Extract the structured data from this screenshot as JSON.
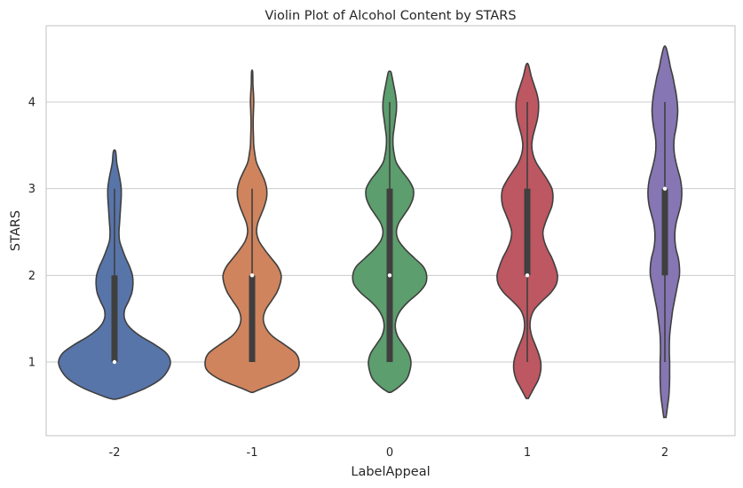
{
  "chart_data": {
    "type": "violin",
    "title": "Violin Plot of Alcohol Content by STARS",
    "xlabel": "LabelAppeal",
    "ylabel": "STARS",
    "categories": [
      "-2",
      "-1",
      "0",
      "1",
      "2"
    ],
    "y_ticks": [
      "1",
      "2",
      "3",
      "4"
    ],
    "ylim": [
      0.2,
      4.8
    ],
    "grid": "horizontal",
    "legend": "none",
    "series": [
      {
        "category": "-2",
        "color": "#5875aa",
        "density": [
          [
            0.57,
            0.02
          ],
          [
            0.6,
            0.18
          ],
          [
            0.7,
            0.56
          ],
          [
            0.8,
            0.82
          ],
          [
            0.9,
            0.95
          ],
          [
            1.0,
            1.0
          ],
          [
            1.1,
            0.93
          ],
          [
            1.2,
            0.72
          ],
          [
            1.3,
            0.46
          ],
          [
            1.4,
            0.27
          ],
          [
            1.5,
            0.18
          ],
          [
            1.6,
            0.18
          ],
          [
            1.7,
            0.25
          ],
          [
            1.8,
            0.31
          ],
          [
            1.9,
            0.33
          ],
          [
            2.0,
            0.32
          ],
          [
            2.1,
            0.27
          ],
          [
            2.2,
            0.2
          ],
          [
            2.3,
            0.14
          ],
          [
            2.4,
            0.09
          ],
          [
            2.5,
            0.08
          ],
          [
            2.6,
            0.09
          ],
          [
            2.7,
            0.1
          ],
          [
            2.8,
            0.11
          ],
          [
            2.9,
            0.12
          ],
          [
            3.0,
            0.12
          ],
          [
            3.1,
            0.1
          ],
          [
            3.2,
            0.07
          ],
          [
            3.3,
            0.04
          ],
          [
            3.43,
            0.02
          ]
        ],
        "whisker": [
          1,
          3
        ],
        "iqr": [
          1,
          2
        ],
        "median": 1
      },
      {
        "category": "-1",
        "color": "#d0845d",
        "density": [
          [
            0.65,
            0.02
          ],
          [
            0.7,
            0.2
          ],
          [
            0.8,
            0.58
          ],
          [
            0.9,
            0.8
          ],
          [
            1.0,
            0.84
          ],
          [
            1.1,
            0.78
          ],
          [
            1.2,
            0.58
          ],
          [
            1.3,
            0.36
          ],
          [
            1.4,
            0.24
          ],
          [
            1.5,
            0.2
          ],
          [
            1.6,
            0.24
          ],
          [
            1.7,
            0.34
          ],
          [
            1.8,
            0.44
          ],
          [
            1.9,
            0.5
          ],
          [
            2.0,
            0.52
          ],
          [
            2.1,
            0.46
          ],
          [
            2.2,
            0.34
          ],
          [
            2.3,
            0.22
          ],
          [
            2.4,
            0.12
          ],
          [
            2.5,
            0.08
          ],
          [
            2.6,
            0.1
          ],
          [
            2.7,
            0.16
          ],
          [
            2.8,
            0.22
          ],
          [
            2.9,
            0.26
          ],
          [
            3.0,
            0.26
          ],
          [
            3.1,
            0.22
          ],
          [
            3.2,
            0.15
          ],
          [
            3.3,
            0.08
          ],
          [
            3.4,
            0.05
          ],
          [
            3.5,
            0.03
          ],
          [
            3.6,
            0.025
          ],
          [
            3.7,
            0.02
          ],
          [
            3.8,
            0.02
          ],
          [
            3.9,
            0.025
          ],
          [
            4.0,
            0.03
          ],
          [
            4.1,
            0.025
          ],
          [
            4.2,
            0.015
          ],
          [
            4.35,
            0.01
          ]
        ],
        "whisker": [
          1,
          3
        ],
        "iqr": [
          1,
          2
        ],
        "median": 2
      },
      {
        "category": "0",
        "color": "#5c9e6d",
        "density": [
          [
            0.65,
            0.02
          ],
          [
            0.7,
            0.14
          ],
          [
            0.8,
            0.3
          ],
          [
            0.9,
            0.36
          ],
          [
            1.0,
            0.38
          ],
          [
            1.1,
            0.34
          ],
          [
            1.2,
            0.24
          ],
          [
            1.3,
            0.14
          ],
          [
            1.4,
            0.1
          ],
          [
            1.5,
            0.12
          ],
          [
            1.6,
            0.2
          ],
          [
            1.7,
            0.34
          ],
          [
            1.8,
            0.52
          ],
          [
            1.9,
            0.64
          ],
          [
            2.0,
            0.66
          ],
          [
            2.1,
            0.6
          ],
          [
            2.2,
            0.44
          ],
          [
            2.3,
            0.28
          ],
          [
            2.4,
            0.16
          ],
          [
            2.5,
            0.12
          ],
          [
            2.6,
            0.16
          ],
          [
            2.7,
            0.26
          ],
          [
            2.8,
            0.36
          ],
          [
            2.9,
            0.42
          ],
          [
            3.0,
            0.42
          ],
          [
            3.1,
            0.34
          ],
          [
            3.2,
            0.22
          ],
          [
            3.3,
            0.12
          ],
          [
            3.4,
            0.08
          ],
          [
            3.5,
            0.06
          ],
          [
            3.6,
            0.06
          ],
          [
            3.7,
            0.08
          ],
          [
            3.8,
            0.1
          ],
          [
            3.9,
            0.12
          ],
          [
            4.0,
            0.12
          ],
          [
            4.1,
            0.1
          ],
          [
            4.2,
            0.07
          ],
          [
            4.3,
            0.04
          ],
          [
            4.35,
            0.02
          ]
        ],
        "whisker": [
          1,
          4
        ],
        "iqr": [
          1,
          3
        ],
        "median": 2
      },
      {
        "category": "1",
        "color": "#bd5761",
        "density": [
          [
            0.58,
            0.02
          ],
          [
            0.7,
            0.12
          ],
          [
            0.8,
            0.2
          ],
          [
            0.9,
            0.24
          ],
          [
            1.0,
            0.24
          ],
          [
            1.1,
            0.2
          ],
          [
            1.2,
            0.14
          ],
          [
            1.3,
            0.08
          ],
          [
            1.4,
            0.05
          ],
          [
            1.5,
            0.06
          ],
          [
            1.6,
            0.12
          ],
          [
            1.7,
            0.26
          ],
          [
            1.8,
            0.42
          ],
          [
            1.9,
            0.52
          ],
          [
            2.0,
            0.54
          ],
          [
            2.1,
            0.5
          ],
          [
            2.2,
            0.44
          ],
          [
            2.3,
            0.36
          ],
          [
            2.4,
            0.3
          ],
          [
            2.5,
            0.28
          ],
          [
            2.6,
            0.32
          ],
          [
            2.7,
            0.38
          ],
          [
            2.8,
            0.44
          ],
          [
            2.9,
            0.46
          ],
          [
            3.0,
            0.44
          ],
          [
            3.1,
            0.36
          ],
          [
            3.2,
            0.26
          ],
          [
            3.3,
            0.16
          ],
          [
            3.4,
            0.1
          ],
          [
            3.5,
            0.08
          ],
          [
            3.6,
            0.1
          ],
          [
            3.7,
            0.14
          ],
          [
            3.8,
            0.18
          ],
          [
            3.9,
            0.2
          ],
          [
            4.0,
            0.2
          ],
          [
            4.1,
            0.17
          ],
          [
            4.2,
            0.12
          ],
          [
            4.3,
            0.07
          ],
          [
            4.43,
            0.02
          ]
        ],
        "whisker": [
          1,
          4
        ],
        "iqr": [
          2,
          3
        ],
        "median": 2
      },
      {
        "category": "2",
        "color": "#8676b3",
        "density": [
          [
            0.36,
            0.02
          ],
          [
            0.5,
            0.05
          ],
          [
            0.6,
            0.07
          ],
          [
            0.7,
            0.08
          ],
          [
            0.8,
            0.085
          ],
          [
            0.9,
            0.085
          ],
          [
            1.0,
            0.085
          ],
          [
            1.1,
            0.08
          ],
          [
            1.2,
            0.08
          ],
          [
            1.3,
            0.085
          ],
          [
            1.4,
            0.1
          ],
          [
            1.5,
            0.12
          ],
          [
            1.6,
            0.14
          ],
          [
            1.7,
            0.17
          ],
          [
            1.8,
            0.2
          ],
          [
            1.9,
            0.23
          ],
          [
            2.0,
            0.26
          ],
          [
            2.1,
            0.26
          ],
          [
            2.2,
            0.24
          ],
          [
            2.3,
            0.2
          ],
          [
            2.4,
            0.18
          ],
          [
            2.5,
            0.18
          ],
          [
            2.6,
            0.2
          ],
          [
            2.7,
            0.24
          ],
          [
            2.8,
            0.28
          ],
          [
            2.9,
            0.3
          ],
          [
            3.0,
            0.3
          ],
          [
            3.1,
            0.28
          ],
          [
            3.2,
            0.24
          ],
          [
            3.3,
            0.2
          ],
          [
            3.4,
            0.17
          ],
          [
            3.5,
            0.16
          ],
          [
            3.6,
            0.17
          ],
          [
            3.7,
            0.2
          ],
          [
            3.8,
            0.22
          ],
          [
            3.9,
            0.23
          ],
          [
            4.0,
            0.22
          ],
          [
            4.1,
            0.2
          ],
          [
            4.2,
            0.17
          ],
          [
            4.3,
            0.14
          ],
          [
            4.4,
            0.1
          ],
          [
            4.5,
            0.07
          ],
          [
            4.63,
            0.02
          ]
        ],
        "whisker": [
          1,
          4
        ],
        "iqr": [
          2,
          3
        ],
        "median": 3
      }
    ]
  }
}
